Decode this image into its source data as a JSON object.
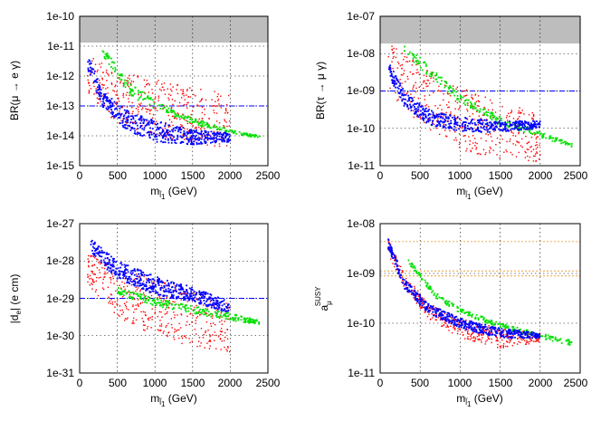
{
  "chart_data": [
    {
      "type": "scatter",
      "id": "p1",
      "xlabel": "m",
      "xlabel_sub": "l̃",
      "xlabel_sub2": "1",
      "xlabel_unit": " (GeV)",
      "ylabel": "BR(μ → e γ)",
      "xlim": [
        0,
        2500
      ],
      "ylim_log10": [
        -15,
        -10
      ],
      "xticks": [
        "0",
        "500",
        "1000",
        "1500",
        "2000",
        "2500"
      ],
      "yticks": [
        "1e-15",
        "1e-14",
        "1e-13",
        "1e-12",
        "1e-11",
        "1e-10"
      ],
      "excluded_band_above_log10": -11.3,
      "hline_log10": -13,
      "series": [
        {
          "name": "red",
          "color": "#ff0000",
          "band": [
            [
              100,
              -11.3,
              -12.6
            ],
            [
              500,
              -11.8,
              -13.6
            ],
            [
              1000,
              -12.1,
              -14.0
            ],
            [
              1500,
              -12.4,
              -14.3
            ],
            [
              2000,
              -12.6,
              -14.4
            ]
          ]
        },
        {
          "name": "green",
          "color": "#00e000",
          "band": [
            [
              300,
              -11.0,
              -11.3
            ],
            [
              700,
              -12.3,
              -12.7
            ],
            [
              1000,
              -12.8,
              -13.1
            ],
            [
              1500,
              -13.4,
              -13.6
            ],
            [
              2000,
              -13.8,
              -13.9
            ],
            [
              2400,
              -14.0,
              -14.1
            ]
          ]
        },
        {
          "name": "blue",
          "color": "#0000ff",
          "band": [
            [
              110,
              -11.2,
              -11.8
            ],
            [
              300,
              -12.5,
              -13.0
            ],
            [
              600,
              -13.1,
              -13.8
            ],
            [
              1000,
              -13.5,
              -14.2
            ],
            [
              1500,
              -13.8,
              -14.3
            ],
            [
              2000,
              -13.9,
              -14.2
            ]
          ]
        }
      ]
    },
    {
      "type": "scatter",
      "id": "p2",
      "xlabel": "m",
      "xlabel_sub": "l̃",
      "xlabel_sub2": "1",
      "xlabel_unit": " (GeV)",
      "ylabel": "BR(τ → μ γ)",
      "xlim": [
        0,
        2500
      ],
      "ylim_log10": [
        -11,
        -7
      ],
      "xticks": [
        "0",
        "500",
        "1000",
        "1500",
        "2000",
        "2500"
      ],
      "yticks": [
        "1e-11",
        "1e-10",
        "1e-09",
        "1e-08",
        "1e-07"
      ],
      "excluded_band_above_log10": -7.8,
      "hline_log10": -9,
      "series": [
        {
          "name": "red",
          "color": "#ff0000",
          "band": [
            [
              100,
              -7.6,
              -9.0
            ],
            [
              500,
              -8.3,
              -10.0
            ],
            [
              1000,
              -8.9,
              -10.6
            ],
            [
              1500,
              -9.3,
              -10.8
            ],
            [
              2000,
              -9.6,
              -10.9
            ]
          ]
        },
        {
          "name": "green",
          "color": "#00e000",
          "band": [
            [
              300,
              -7.7,
              -8.0
            ],
            [
              700,
              -8.5,
              -8.8
            ],
            [
              1000,
              -9.1,
              -9.3
            ],
            [
              1500,
              -9.7,
              -9.9
            ],
            [
              2000,
              -10.1,
              -10.25
            ],
            [
              2400,
              -10.4,
              -10.5
            ]
          ]
        },
        {
          "name": "blue",
          "color": "#0000ff",
          "band": [
            [
              110,
              -8.2,
              -8.6
            ],
            [
              300,
              -9.0,
              -9.4
            ],
            [
              600,
              -9.5,
              -9.9
            ],
            [
              1000,
              -9.7,
              -10.1
            ],
            [
              1500,
              -9.8,
              -10.1
            ],
            [
              2000,
              -9.8,
              -10.0
            ]
          ]
        }
      ]
    },
    {
      "type": "scatter",
      "id": "p3",
      "xlabel": "m",
      "xlabel_sub": "l̃",
      "xlabel_sub2": "1",
      "xlabel_unit": " (GeV)",
      "ylabel": "|d",
      "ylabel_sub": "e",
      "ylabel_unit": "| (e cm)",
      "xlim": [
        0,
        2500
      ],
      "ylim_log10": [
        -31,
        -27
      ],
      "xticks": [
        "0",
        "500",
        "1000",
        "1500",
        "2000",
        "2500"
      ],
      "yticks": [
        "1e-31",
        "1e-30",
        "1e-29",
        "1e-28",
        "1e-27"
      ],
      "hline_log10": -29,
      "series": [
        {
          "name": "red",
          "color": "#ff0000",
          "band": [
            [
              100,
              -27.8,
              -28.6
            ],
            [
              500,
              -28.2,
              -29.5
            ],
            [
              1000,
              -28.5,
              -30.0
            ],
            [
              1500,
              -28.8,
              -30.3
            ],
            [
              2000,
              -29.1,
              -30.5
            ]
          ]
        },
        {
          "name": "green",
          "color": "#00e000",
          "band": [
            [
              500,
              -28.7,
              -28.9
            ],
            [
              1000,
              -29.0,
              -29.2
            ],
            [
              1500,
              -29.2,
              -29.4
            ],
            [
              2000,
              -29.4,
              -29.6
            ],
            [
              2400,
              -29.6,
              -29.7
            ]
          ]
        },
        {
          "name": "blue",
          "color": "#0000ff",
          "band": [
            [
              150,
              -27.4,
              -27.8
            ],
            [
              500,
              -28.0,
              -28.5
            ],
            [
              1000,
              -28.4,
              -28.9
            ],
            [
              1500,
              -28.7,
              -29.1
            ],
            [
              2000,
              -29.1,
              -29.4
            ]
          ]
        }
      ]
    },
    {
      "type": "scatter",
      "id": "p4",
      "xlabel": "m",
      "xlabel_sub": "l̃",
      "xlabel_sub2": "1",
      "xlabel_unit": " (GeV)",
      "ylabel": "a",
      "ylabel_sub": "μ",
      "ylabel_sup": "SUSY",
      "xlim": [
        0,
        2500
      ],
      "ylim_log10": [
        -11,
        -8
      ],
      "xticks": [
        "0",
        "500",
        "1000",
        "1500",
        "2000",
        "2500"
      ],
      "yticks": [
        "1e-11",
        "1e-10",
        "1e-09",
        "1e-08"
      ],
      "hlines_log10": [
        -8.36,
        -8.95,
        -9.05
      ],
      "series": [
        {
          "name": "red",
          "color": "#ff0000",
          "band": [
            [
              100,
              -8.3,
              -8.6
            ],
            [
              300,
              -9.0,
              -9.3
            ],
            [
              600,
              -9.6,
              -9.9
            ],
            [
              1000,
              -9.9,
              -10.3
            ],
            [
              1500,
              -10.1,
              -10.5
            ],
            [
              2000,
              -10.2,
              -10.4
            ]
          ]
        },
        {
          "name": "green",
          "color": "#00e000",
          "band": [
            [
              350,
              -8.7,
              -8.8
            ],
            [
              700,
              -9.4,
              -9.5
            ],
            [
              1000,
              -9.7,
              -9.8
            ],
            [
              1500,
              -10.0,
              -10.1
            ],
            [
              2000,
              -10.2,
              -10.3
            ],
            [
              2400,
              -10.35,
              -10.45
            ]
          ]
        },
        {
          "name": "blue",
          "color": "#0000ff",
          "band": [
            [
              100,
              -8.3,
              -8.5
            ],
            [
              300,
              -9.1,
              -9.3
            ],
            [
              600,
              -9.6,
              -9.8
            ],
            [
              1000,
              -9.9,
              -10.1
            ],
            [
              1500,
              -10.1,
              -10.3
            ],
            [
              2000,
              -10.2,
              -10.3
            ]
          ]
        }
      ]
    }
  ]
}
